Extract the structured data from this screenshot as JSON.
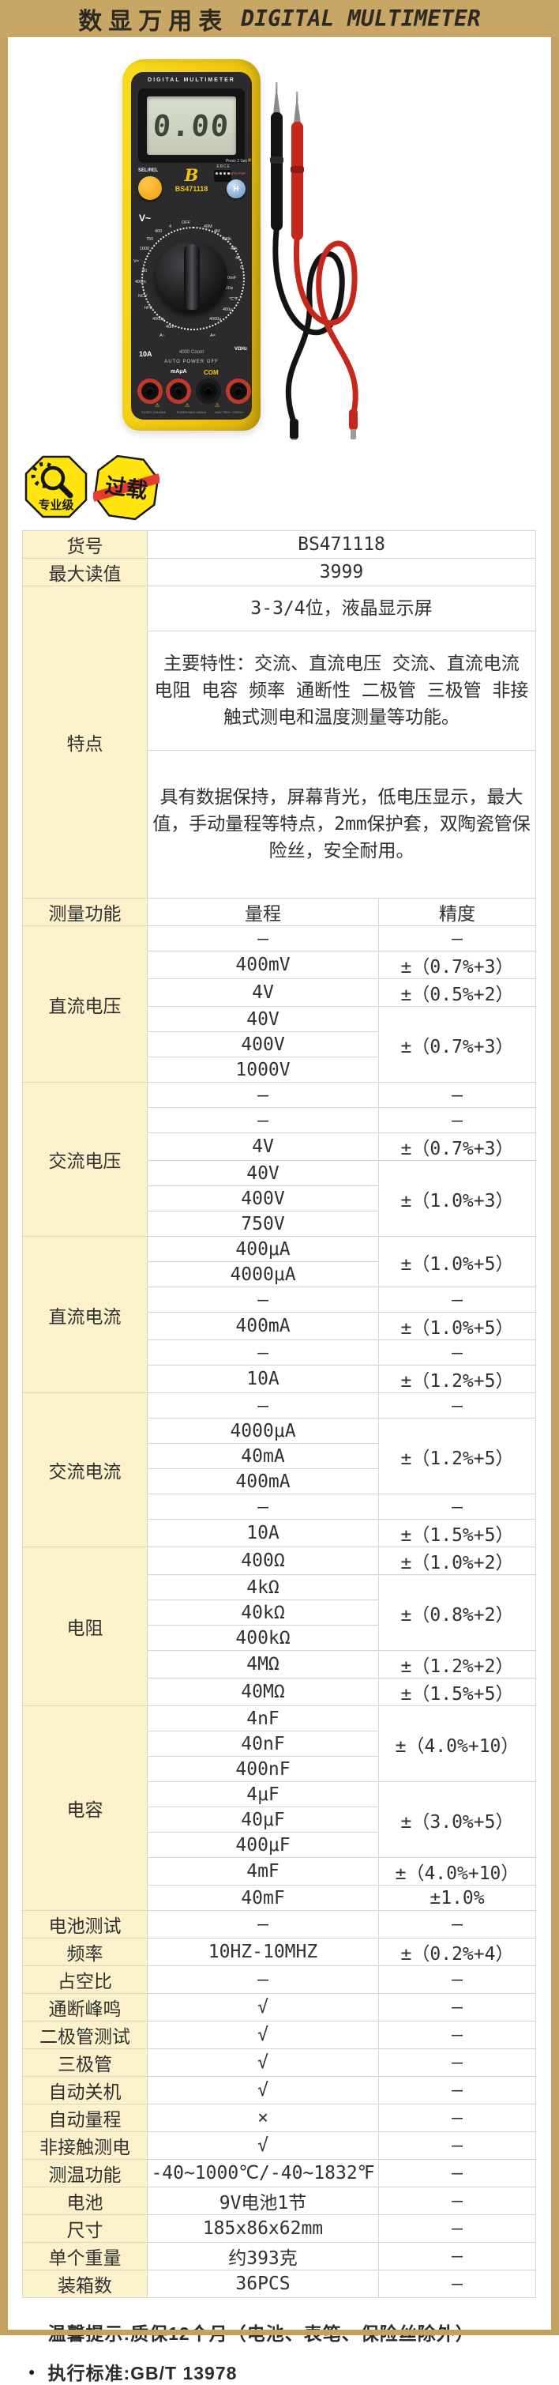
{
  "header": {
    "title_zh": "数显万用表",
    "title_en": "DIGITAL MULTIMETER"
  },
  "product": {
    "face_title": "DIGITAL MULTIMETER",
    "lcd_value": "0.00",
    "btn_selrel": "SEL/REL",
    "brand_letter": "B",
    "model": "BS471118",
    "socket_label": "EBCE",
    "npn_pnp": "NPN PNP",
    "press_label": "Press 2 Sec",
    "backlight_icon": "✳",
    "btn_hold": "H",
    "vac_label": "V~",
    "dial_labels": [
      "OFF",
      "4",
      "400",
      "750",
      "1000",
      "V=",
      "40",
      "400m",
      "NCV",
      "hFE",
      "4000μ",
      "40m",
      "A~",
      "40M",
      "4M",
      "400k",
      "40k",
      "4k",
      "Ω",
      "40mF",
      "10MHz",
      "℃℉",
      "400μ",
      "4000μ",
      "A="
    ],
    "jack_10a": "10A",
    "count_label": "4000 Count",
    "jack_v": "VΩHz",
    "auto_power_off": "AUTO POWER OFF",
    "jack_ma": "mAμA",
    "jack_com": "COM",
    "warning_icon": "⚠",
    "fine_print": [
      "FUSED 10A MAX",
      "FUSED MAX 400mA",
      "MAX 750V~ 1000V="
    ]
  },
  "badges": [
    {
      "label": "专业级"
    },
    {
      "label": "过载"
    }
  ],
  "table": {
    "info_rows": [
      {
        "label": "货号",
        "value": "BS471118"
      },
      {
        "label": "最大读值",
        "value": "3999"
      }
    ],
    "features": {
      "label": "特点",
      "items": [
        "3-3/4位，液晶显示屏",
        "主要特性：交流、直流电压 交流、直流电流 电阻 电容 频率 通断性 二极管 三极管 非接触式测电和温度测量等功能。",
        "具有数据保持，屏幕背光，低电压显示，最大值，手动量程等特点，2mm保护套，双陶瓷管保险丝，安全耐用。"
      ]
    },
    "headers": [
      "测量功能",
      "量程",
      "精度"
    ],
    "groups": [
      {
        "label": "直流电压",
        "rows": [
          {
            "range": "–",
            "acc": "–"
          },
          {
            "range": "400mV",
            "acc": "±（0.7%+3）"
          },
          {
            "range": "4V",
            "acc": "±（0.5%+2）"
          },
          {
            "range": "40V",
            "acc": "±（0.7%+3）",
            "span": 3
          },
          {
            "range": "400V"
          },
          {
            "range": "1000V"
          }
        ]
      },
      {
        "label": "交流电压",
        "rows": [
          {
            "range": "–",
            "acc": "–"
          },
          {
            "range": "–",
            "acc": "–"
          },
          {
            "range": "4V",
            "acc": "±（0.7%+3）"
          },
          {
            "range": "40V",
            "acc": "±（1.0%+3）",
            "span": 3
          },
          {
            "range": "400V"
          },
          {
            "range": "750V"
          }
        ]
      },
      {
        "label": "直流电流",
        "rows": [
          {
            "range": "400μA",
            "acc": "±（1.0%+5）",
            "span": 2
          },
          {
            "range": "4000μA"
          },
          {
            "range": "–",
            "acc": "–"
          },
          {
            "range": "400mA",
            "acc": "±（1.0%+5）"
          },
          {
            "range": "–",
            "acc": "–"
          },
          {
            "range": "10A",
            "acc": "±（1.2%+5）"
          }
        ]
      },
      {
        "label": "交流电流",
        "rows": [
          {
            "range": "–",
            "acc": "–"
          },
          {
            "range": "4000μA",
            "acc": "±（1.2%+5）",
            "span": 3
          },
          {
            "range": "40mA"
          },
          {
            "range": "400mA"
          },
          {
            "range": "–",
            "acc": "–"
          },
          {
            "range": "10A",
            "acc": "±（1.5%+5）"
          }
        ]
      },
      {
        "label": "电阻",
        "rows": [
          {
            "range": "400Ω",
            "acc": "±（1.0%+2）"
          },
          {
            "range": "4kΩ",
            "acc": "±（0.8%+2）",
            "span": 3
          },
          {
            "range": "40kΩ"
          },
          {
            "range": "400kΩ"
          },
          {
            "range": "4MΩ",
            "acc": "±（1.2%+2）"
          },
          {
            "range": "40MΩ",
            "acc": "±（1.5%+5）"
          }
        ]
      },
      {
        "label": "电容",
        "rows": [
          {
            "range": "4nF",
            "acc": "±（4.0%+10）",
            "span": 3
          },
          {
            "range": "40nF"
          },
          {
            "range": "400nF"
          },
          {
            "range": "4μF",
            "acc": "±（3.0%+5）",
            "span": 3
          },
          {
            "range": "40μF"
          },
          {
            "range": "400μF"
          },
          {
            "range": "4mF",
            "acc": "±（4.0%+10）"
          },
          {
            "range": "40mF",
            "acc": "±1.0%"
          }
        ]
      },
      {
        "label": "电池测试",
        "rows": [
          {
            "range": "–",
            "acc": "–"
          }
        ]
      },
      {
        "label": "频率",
        "rows": [
          {
            "range": "10HZ-10MHZ",
            "acc": "±（0.2%+4）"
          }
        ]
      },
      {
        "label": "占空比",
        "rows": [
          {
            "range": "–",
            "acc": "–"
          }
        ]
      },
      {
        "label": "通断峰鸣",
        "rows": [
          {
            "range": "√",
            "acc": "–"
          }
        ]
      },
      {
        "label": "二极管测试",
        "rows": [
          {
            "range": "√",
            "acc": "–"
          }
        ]
      },
      {
        "label": "三极管",
        "rows": [
          {
            "range": "√",
            "acc": "–"
          }
        ]
      },
      {
        "label": "自动关机",
        "rows": [
          {
            "range": "√",
            "acc": "–"
          }
        ]
      },
      {
        "label": "自动量程",
        "rows": [
          {
            "range": "×",
            "acc": "–"
          }
        ]
      },
      {
        "label": "非接触测电",
        "rows": [
          {
            "range": "√",
            "acc": "–"
          }
        ]
      },
      {
        "label": "测温功能",
        "rows": [
          {
            "range": "-40~1000℃/-40~1832℉",
            "acc": "–"
          }
        ]
      },
      {
        "label": "电池",
        "rows": [
          {
            "range": "9V电池1节",
            "acc": "–"
          }
        ]
      },
      {
        "label": "尺寸",
        "rows": [
          {
            "range": "185x86x62mm",
            "acc": "–"
          }
        ]
      },
      {
        "label": "单个重量",
        "rows": [
          {
            "range": "约393克",
            "acc": "–"
          }
        ]
      },
      {
        "label": "装箱数",
        "rows": [
          {
            "range": "36PCS",
            "acc": "–"
          }
        ]
      }
    ]
  },
  "footer": {
    "notes": [
      "温馨提示:质保12个月（电池、表笔、保险丝除外）",
      "执行标准:GB/T 13978"
    ]
  },
  "colors": {
    "gold": "#c8a766",
    "label_cell": "#fbf2cb",
    "badge_yellow": "#ffe50d",
    "overload_red": "#e43c30",
    "meter_yellow": "#f2c90f"
  }
}
